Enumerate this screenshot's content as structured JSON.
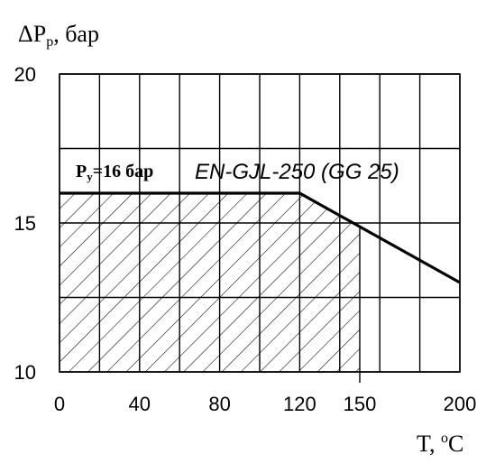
{
  "chart_data": {
    "type": "line",
    "ylabel": "ΔP",
    "ylabel_sub": "р",
    "ylabel_unit": ", бар",
    "xlabel": "T, ",
    "xlabel_sup": "о",
    "xlabel_unit": "C",
    "x_ticks": [
      "0",
      "40",
      "80",
      "120",
      "150",
      "200"
    ],
    "x_tick_values": [
      0,
      40,
      80,
      120,
      150,
      200
    ],
    "y_ticks": [
      "10",
      "15",
      "20"
    ],
    "y_tick_values": [
      10,
      15,
      20
    ],
    "xlim": [
      0,
      200
    ],
    "ylim": [
      10,
      20
    ],
    "x_grid": [
      0,
      20,
      40,
      60,
      80,
      100,
      120,
      140,
      160,
      180,
      200
    ],
    "y_grid": [
      10,
      12.5,
      15,
      17.5,
      20
    ],
    "grid": true,
    "series": [
      {
        "x": [
          0,
          120,
          200
        ],
        "y": [
          16,
          16,
          13
        ]
      }
    ],
    "hatched_region": {
      "x": [
        0,
        120,
        150,
        150,
        0
      ],
      "y": [
        16,
        16,
        14.9,
        10,
        10
      ]
    },
    "annotations": {
      "pressure_label": "P",
      "pressure_sub": "y",
      "pressure_value": "=16 бар",
      "material": "EN-GJL-250 (GG 25)"
    }
  }
}
